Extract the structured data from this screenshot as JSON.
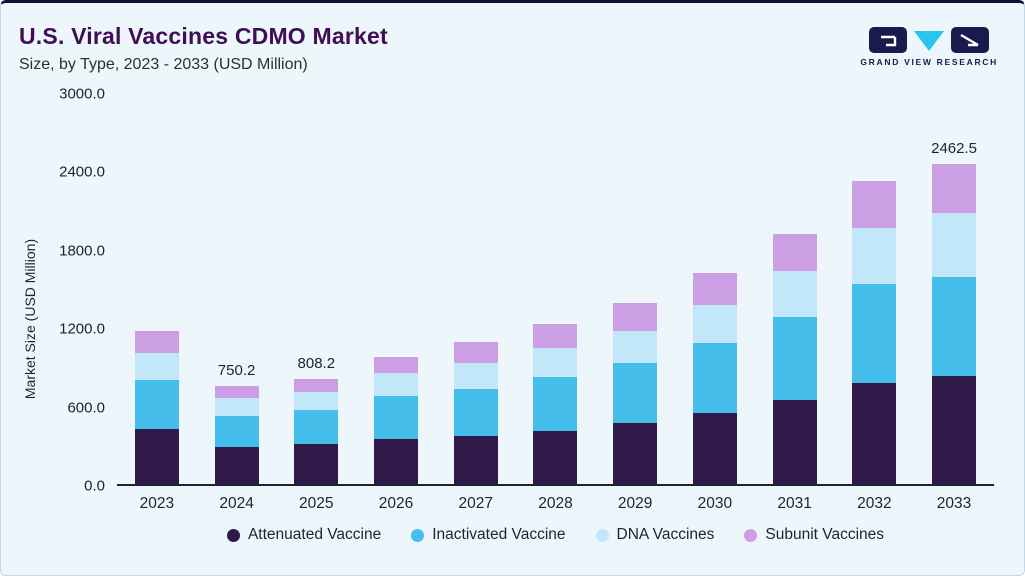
{
  "header": {
    "title": "U.S. Viral Vaccines CDMO Market",
    "subtitle": "Size, by Type, 2023 - 2033 (USD Million)",
    "logo_text": "GRAND VIEW RESEARCH"
  },
  "colors": {
    "background": "#edf6fb",
    "title": "#3f0e55",
    "logo_navy": "#1a1a4e",
    "logo_cyan": "#27c5f2",
    "axis_text": "#1e232b"
  },
  "chart_data": {
    "type": "bar",
    "stacked": true,
    "title": "U.S. Viral Vaccines CDMO Market Size, by Type, 2023 - 2033 (USD Million)",
    "xlabel": "",
    "ylabel": "Market Size (USD Million)",
    "ylim": [
      0,
      3000
    ],
    "ytick_step": 600,
    "ytick_labels": [
      "0.0",
      "600.0",
      "1200.0",
      "1800.0",
      "2400.0",
      "3000.0"
    ],
    "grid": false,
    "legend_position": "bottom",
    "categories": [
      "2023",
      "2024",
      "2025",
      "2026",
      "2027",
      "2028",
      "2029",
      "2030",
      "2031",
      "2032",
      "2033"
    ],
    "series": [
      {
        "name": "Attenuated Vaccine",
        "color": "#301a4a",
        "values": [
          420,
          285,
          310,
          345,
          370,
          410,
          470,
          545,
          645,
          780,
          827.5
        ]
      },
      {
        "name": "Inactivated Vaccine",
        "color": "#45beec",
        "values": [
          380,
          240,
          260,
          330,
          360,
          410,
          460,
          540,
          640,
          760,
          766
        ]
      },
      {
        "name": "DNA Vaccines",
        "color": "#c2e7f8",
        "values": [
          210,
          135,
          140,
          180,
          200,
          230,
          250,
          290,
          350,
          430,
          490
        ]
      },
      {
        "name": "Subunit Vaccines",
        "color": "#cc9ee4",
        "values": [
          170,
          90.2,
          98.2,
          125,
          160,
          180,
          215,
          245,
          290,
          360,
          379
        ]
      }
    ],
    "annotations": [
      {
        "category": "2024",
        "text": "750.2"
      },
      {
        "category": "2025",
        "text": "808.2"
      },
      {
        "category": "2033",
        "text": "2462.5"
      }
    ]
  }
}
